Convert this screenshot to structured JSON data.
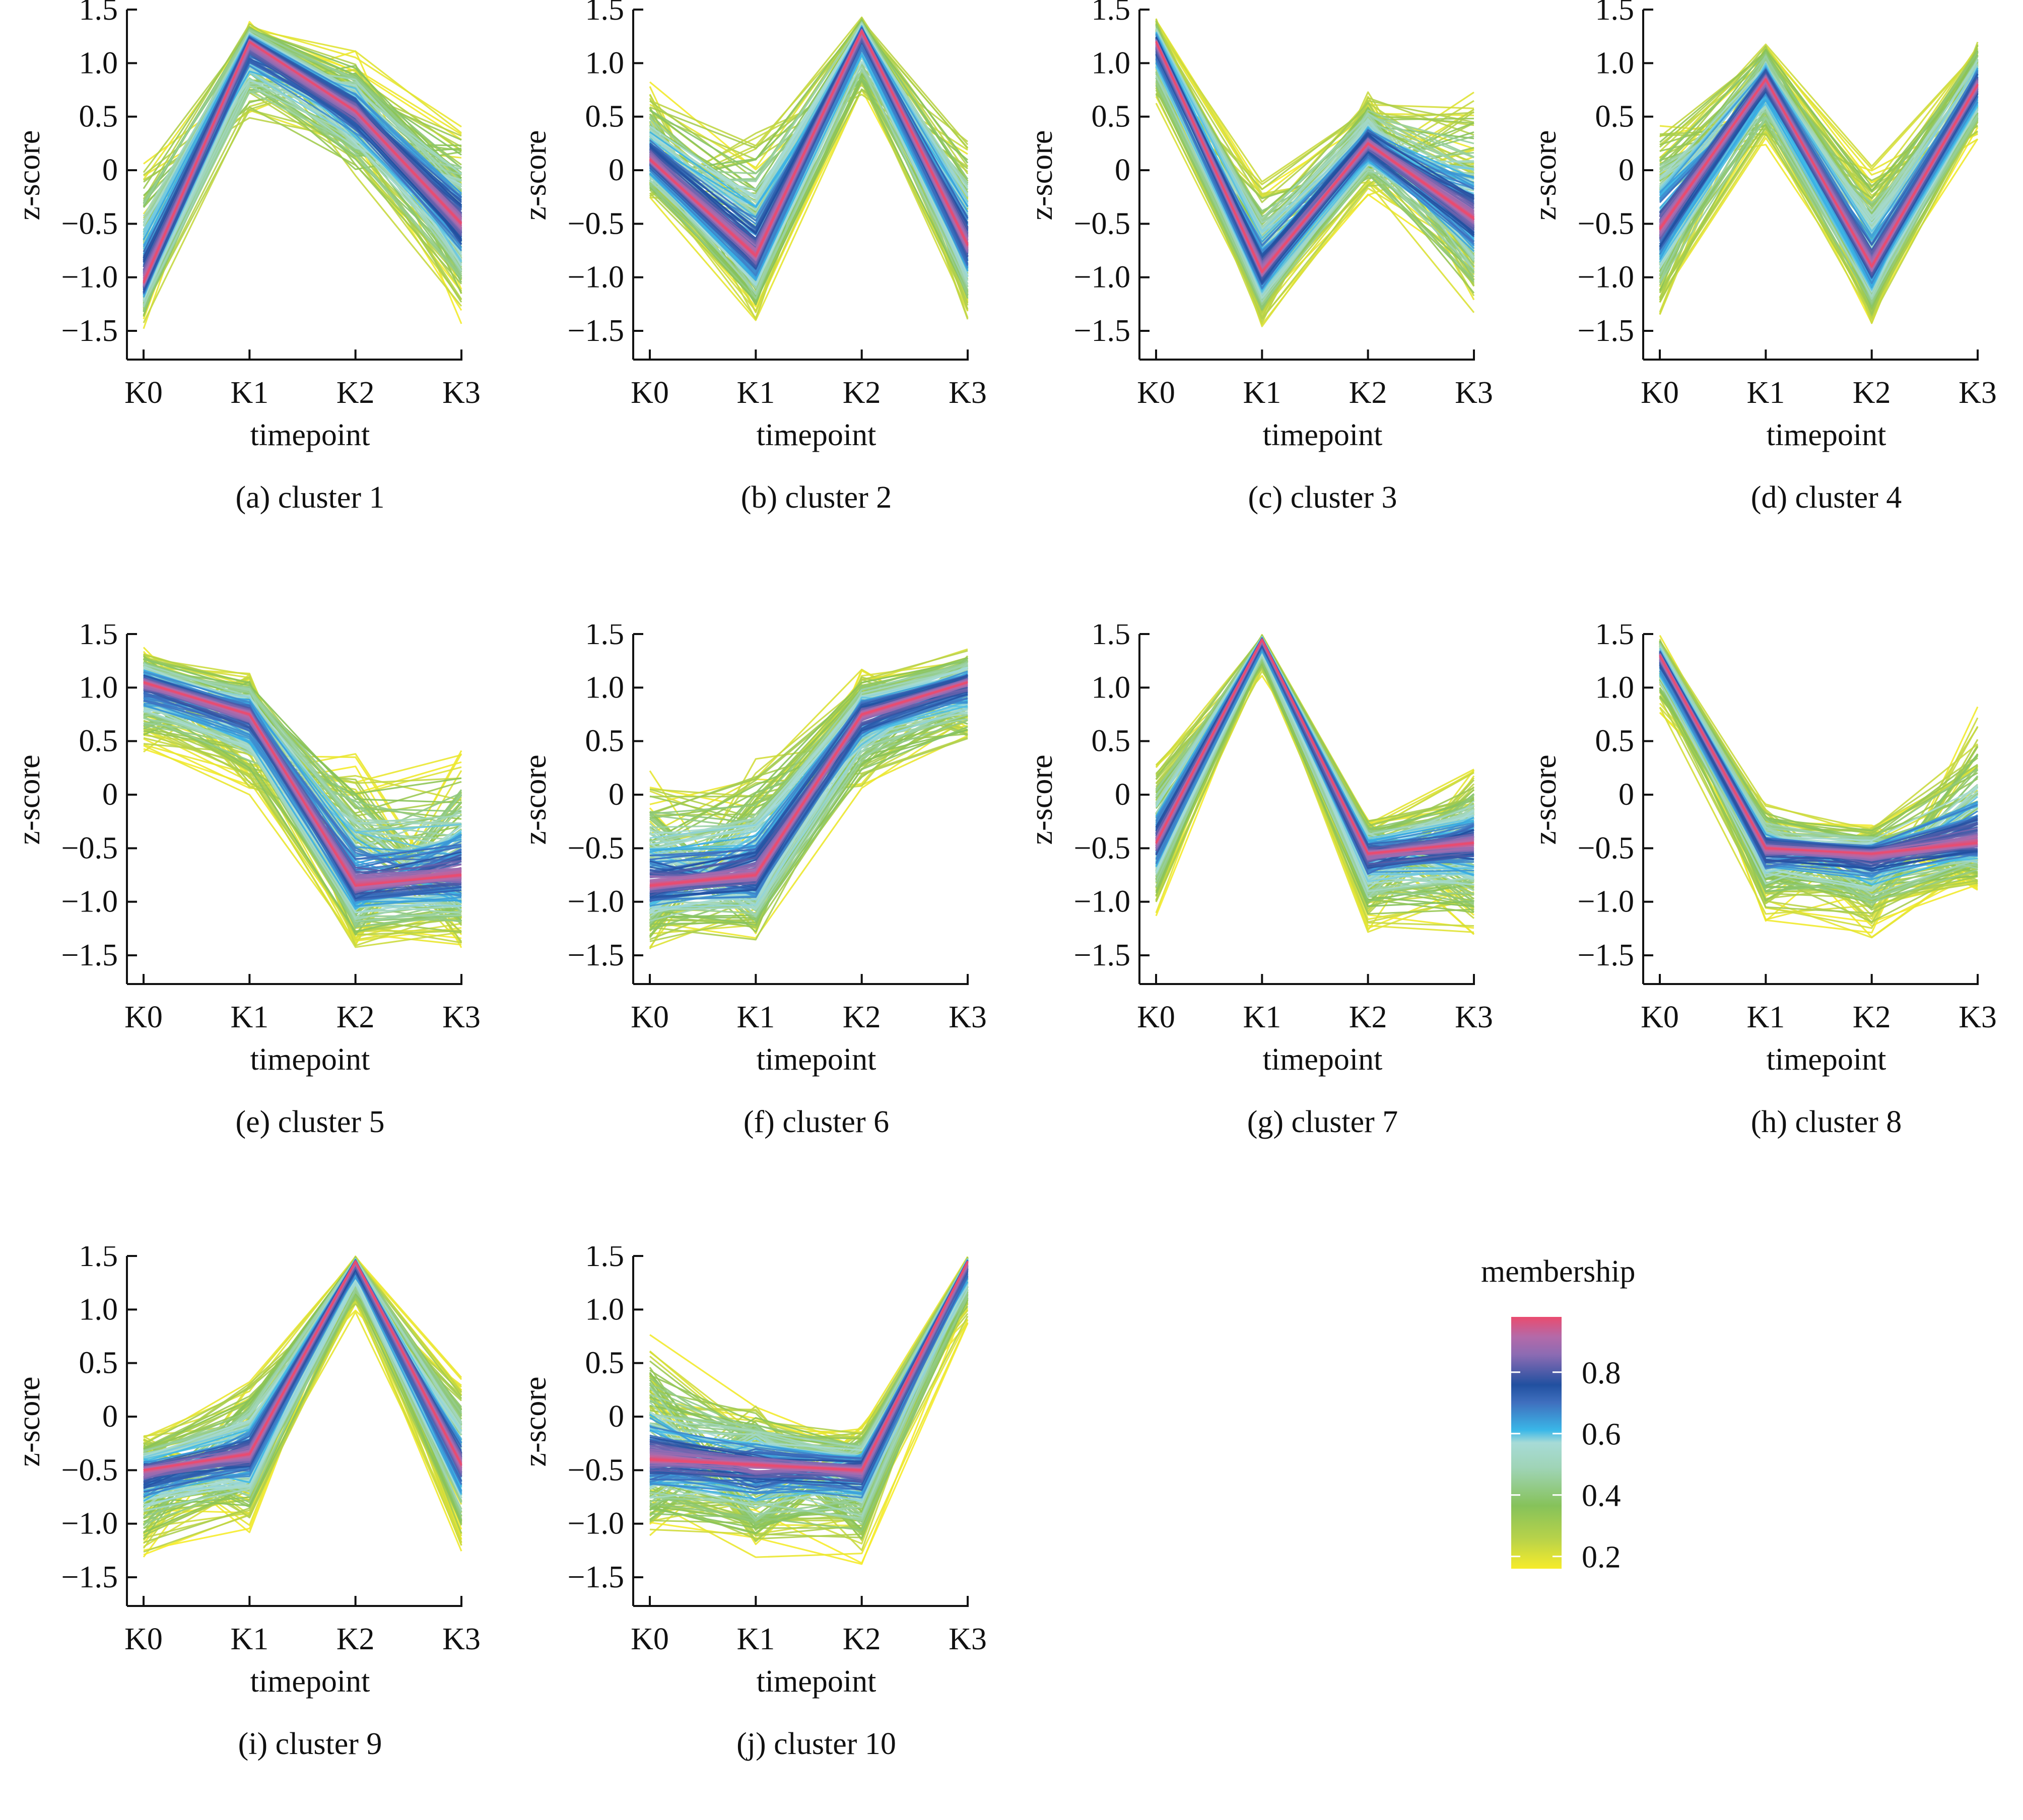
{
  "chart_data": {
    "type": "line",
    "figure": "Fuzzy c-means time-course clusters (z-score per timepoint, colored by membership)",
    "shared": {
      "xlabel": "timepoint",
      "ylabel": "z-score",
      "categories": [
        "K0",
        "K1",
        "K2",
        "K3"
      ],
      "ylim": [
        -1.75,
        1.5
      ],
      "yticks": [
        1.5,
        1.0,
        0.5,
        0,
        -0.5,
        -1.0,
        -1.5
      ],
      "ytick_labels": [
        "1.5",
        "1.0",
        "0.5",
        "0",
        "−0.5",
        "−1.0",
        "−1.5"
      ],
      "grid": false
    },
    "panels": [
      {
        "caption": "(a) cluster 1",
        "center": [
          -1.05,
          1.2,
          0.55,
          -0.5
        ],
        "upper": [
          0.25,
          1.4,
          1.15,
          0.55
        ],
        "lower": [
          -1.5,
          0.35,
          -0.2,
          -1.45
        ]
      },
      {
        "caption": "(b) cluster 2",
        "center": [
          0.1,
          -0.8,
          1.3,
          -0.7
        ],
        "upper": [
          0.85,
          0.55,
          1.45,
          0.45
        ],
        "lower": [
          -0.3,
          -1.5,
          0.6,
          -1.5
        ]
      },
      {
        "caption": "(c) cluster 3",
        "center": [
          1.2,
          -0.95,
          0.25,
          -0.45
        ],
        "upper": [
          1.45,
          0.05,
          0.8,
          0.8
        ],
        "lower": [
          0.55,
          -1.5,
          -0.25,
          -1.4
        ]
      },
      {
        "caption": "(d) cluster 4",
        "center": [
          -0.55,
          0.85,
          -0.9,
          0.8
        ],
        "upper": [
          0.55,
          1.25,
          0.15,
          1.3
        ],
        "lower": [
          -1.45,
          0.2,
          -1.5,
          0.25
        ]
      },
      {
        "caption": "(e) cluster 5",
        "center": [
          1.05,
          0.75,
          -0.85,
          -0.75
        ],
        "upper": [
          1.4,
          1.2,
          0.5,
          0.55
        ],
        "lower": [
          0.35,
          -0.05,
          -1.5,
          -1.5
        ]
      },
      {
        "caption": "(f) cluster 6",
        "center": [
          -0.85,
          -0.75,
          0.75,
          1.05
        ],
        "upper": [
          0.3,
          0.45,
          1.2,
          1.4
        ],
        "lower": [
          -1.5,
          -1.5,
          -0.05,
          0.4
        ]
      },
      {
        "caption": "(g) cluster 7",
        "center": [
          -0.45,
          1.45,
          -0.55,
          -0.45
        ],
        "upper": [
          0.4,
          1.5,
          -0.15,
          0.3
        ],
        "lower": [
          -1.15,
          1.1,
          -1.35,
          -1.35
        ]
      },
      {
        "caption": "(h) cluster 8",
        "center": [
          1.3,
          -0.5,
          -0.55,
          -0.45
        ],
        "upper": [
          1.5,
          -0.05,
          -0.25,
          0.9
        ],
        "lower": [
          0.75,
          -1.2,
          -1.4,
          -0.9
        ]
      },
      {
        "caption": "(i) cluster 9",
        "center": [
          -0.5,
          -0.35,
          1.45,
          -0.45
        ],
        "upper": [
          -0.15,
          0.45,
          1.5,
          0.4
        ],
        "lower": [
          -1.4,
          -1.1,
          0.95,
          -1.3
        ]
      },
      {
        "caption": "(j) cluster 10",
        "center": [
          -0.4,
          -0.45,
          -0.5,
          1.45
        ],
        "upper": [
          0.85,
          0.2,
          -0.05,
          1.5
        ],
        "lower": [
          -1.2,
          -1.4,
          -1.4,
          0.85
        ]
      }
    ],
    "legend": {
      "title": "membership",
      "placement": "bottom-right",
      "type": "colorbar",
      "range": [
        0.16,
        0.98
      ],
      "ticks": [
        0.8,
        0.6,
        0.4,
        0.2
      ],
      "tick_labels": [
        "0.8",
        "0.6",
        "0.4",
        "0.2"
      ],
      "colors": [
        {
          "at": 0.0,
          "color": "#f7ec2a"
        },
        {
          "at": 0.12,
          "color": "#b7d24a"
        },
        {
          "at": 0.25,
          "color": "#86c25a"
        },
        {
          "at": 0.4,
          "color": "#9fd4b6"
        },
        {
          "at": 0.5,
          "color": "#a7dbd7"
        },
        {
          "at": 0.55,
          "color": "#3ab7e8"
        },
        {
          "at": 0.66,
          "color": "#3f6fbe"
        },
        {
          "at": 0.73,
          "color": "#2150a0"
        },
        {
          "at": 0.85,
          "color": "#8c6bb3"
        },
        {
          "at": 0.92,
          "color": "#b36aa9"
        },
        {
          "at": 1.0,
          "color": "#ea4b6f"
        }
      ]
    }
  }
}
